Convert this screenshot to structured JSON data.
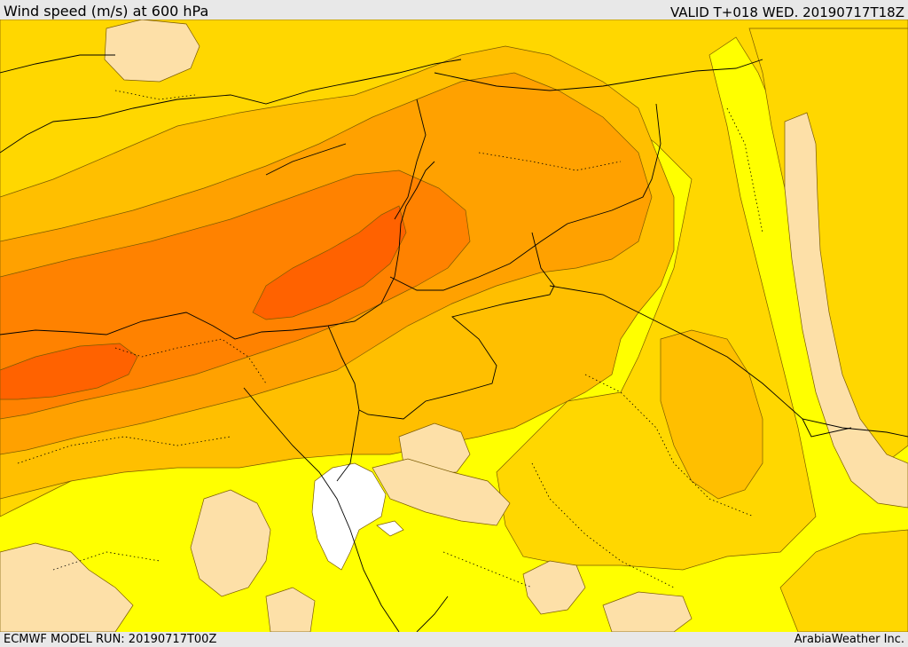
{
  "header": {
    "title": "Wind speed (m/s) at 600 hPa",
    "valid_time": "VALID T+018 WED. 20190717T18Z"
  },
  "footer": {
    "model_run": "ECMWF MODEL RUN: 20190717T00Z",
    "credit": "ArabiaWeather Inc."
  },
  "map": {
    "variable": "wind speed",
    "level": "600 hPa",
    "units": "m/s",
    "shading_colors": {
      "lowest": "#ffffff",
      "low": "#fde0a8",
      "band_1": "#ffff00",
      "band_2": "#ffd700",
      "band_3": "#ffbf00",
      "band_4": "#ffa100",
      "band_5": "#ff8200",
      "band_6": "#ff6200"
    }
  }
}
